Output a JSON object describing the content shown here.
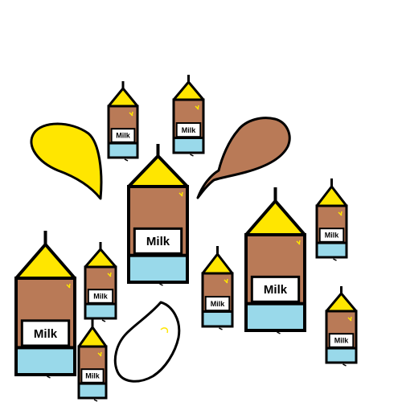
{
  "carton_label": "Milk",
  "colors": {
    "background": "#ffffff",
    "outline": "#000000",
    "roof_yellow": "#ffe600",
    "chocolate_brown": "#b97a57",
    "label_white": "#ffffff",
    "base_blue": "#99d9ea"
  },
  "splashes": [
    {
      "name": "yellow-banana-splash",
      "color": "yellow"
    },
    {
      "name": "chocolate-milk-splash",
      "color": "brown"
    },
    {
      "name": "white-milk-splash",
      "color": "white"
    }
  ],
  "carton_count": 10
}
